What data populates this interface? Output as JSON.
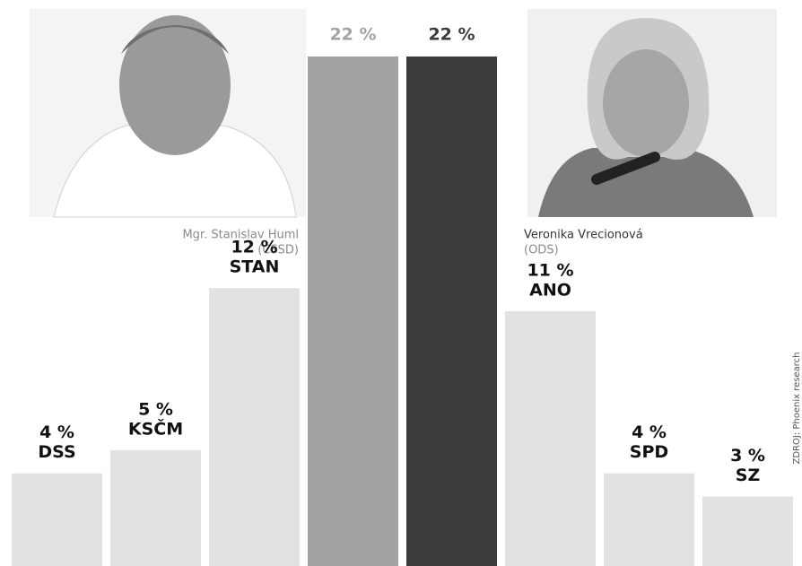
{
  "chart_data": {
    "type": "bar",
    "categories": [
      "DSS",
      "KSČM",
      "STAN",
      null,
      null,
      "ANO",
      "SPD",
      "SZ"
    ],
    "values": [
      4,
      5,
      12,
      22,
      22,
      11,
      4,
      3
    ],
    "value_labels": [
      "4 %",
      "5 %",
      "12 %",
      "22 %",
      "22 %",
      "11 %",
      "4 %",
      "3 %"
    ],
    "colors": [
      "#e2e2e2",
      "#e2e2e2",
      "#e2e2e2",
      "#a3a3a3",
      "#3b3b3b",
      "#e2e2e2",
      "#e2e2e2",
      "#e2e2e2"
    ],
    "annotations": [
      {
        "name": "Mgr. Stanislav Huml",
        "party": "(ČSSD)"
      },
      {
        "name": "Veronika Vrecionová",
        "party": "(ODS)"
      }
    ],
    "source": "ZDROJ: Phoenix research"
  }
}
